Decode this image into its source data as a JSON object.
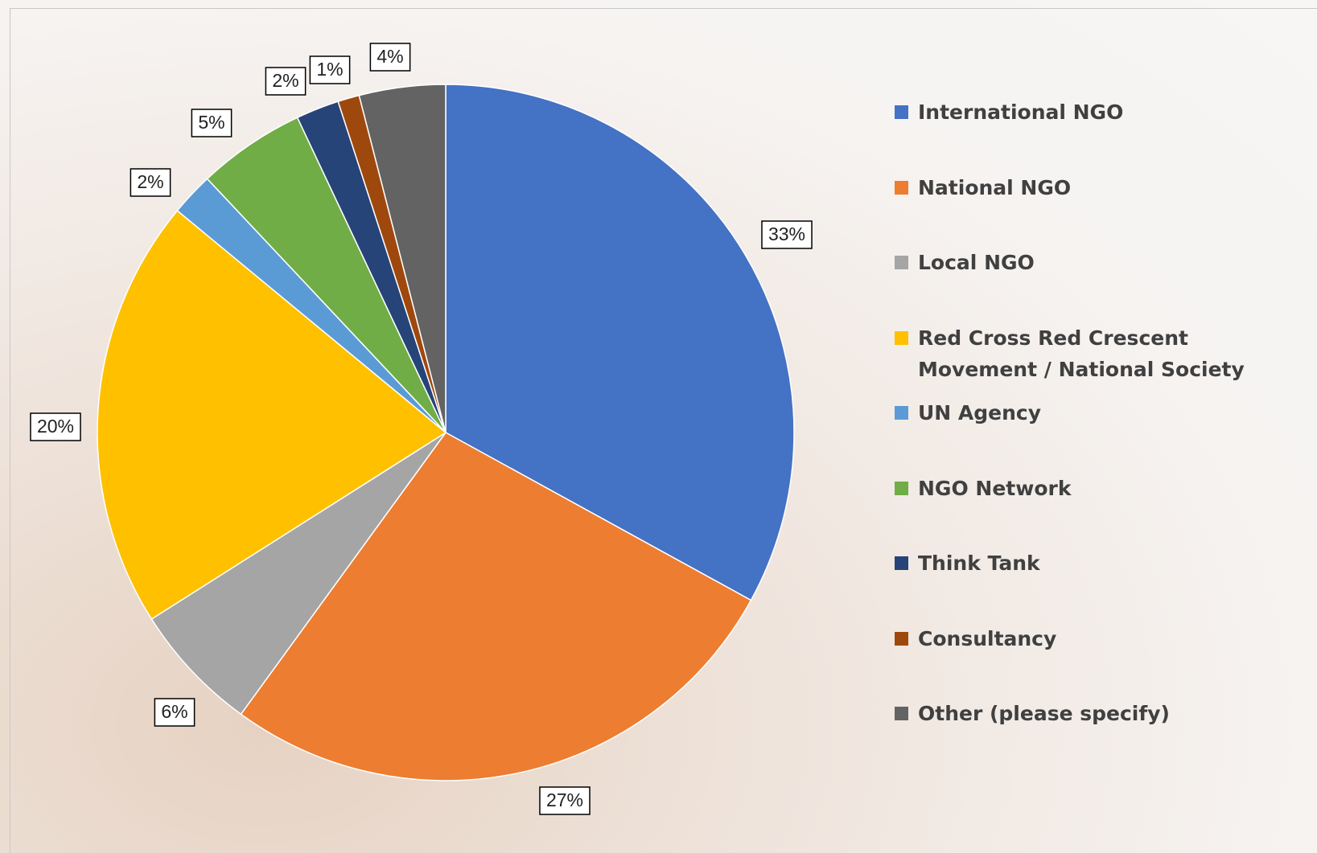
{
  "chart_data": {
    "type": "pie",
    "categories": [
      "International NGO",
      "National NGO",
      "Local NGO",
      "Red Cross Red Crescent Movement / National Society",
      "UN Agency",
      "NGO Network",
      "Think Tank",
      "Consultancy",
      "Other (please specify)"
    ],
    "values": [
      33,
      27,
      6,
      20,
      2,
      5,
      2,
      1,
      4
    ],
    "value_labels": [
      "33%",
      "27%",
      "6%",
      "20%",
      "2%",
      "5%",
      "2%",
      "1%",
      "4%"
    ],
    "colors": [
      "#4472c4",
      "#ed7d31",
      "#a5a5a5",
      "#ffc000",
      "#5b9bd5",
      "#70ad47",
      "#264478",
      "#9e480e",
      "#636363"
    ],
    "legend": "right"
  }
}
